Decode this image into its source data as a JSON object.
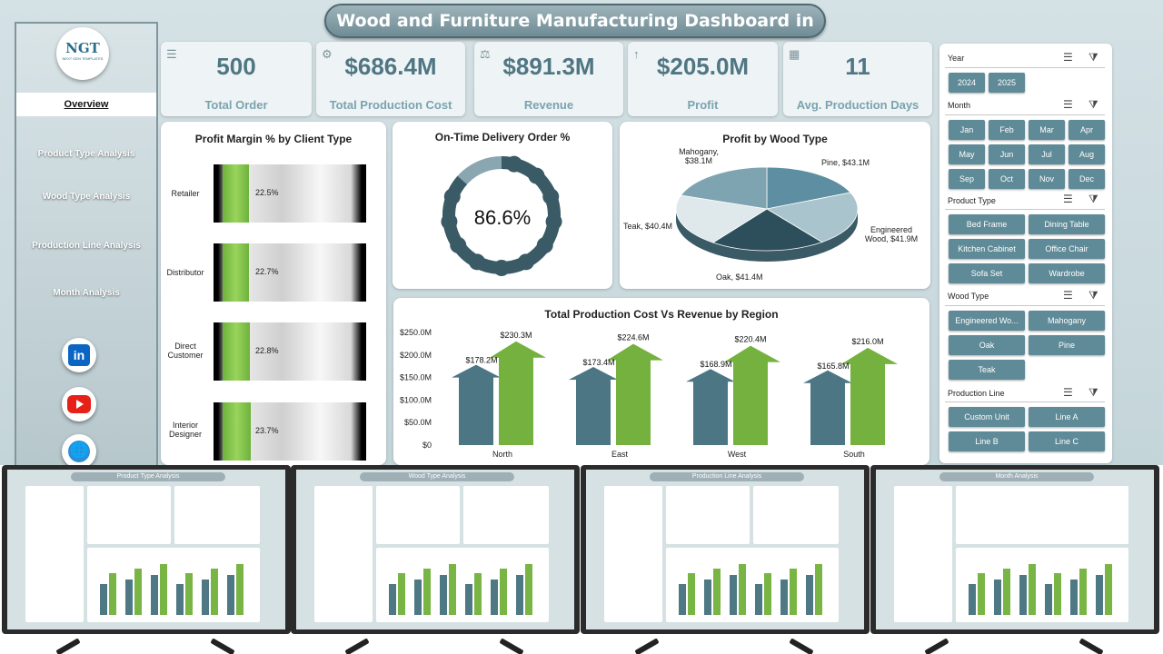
{
  "title": "Wood and Furniture Manufacturing Dashboard in Excel",
  "logo": {
    "text": "NGT",
    "sub": "NEXT GEN TEMPLATES"
  },
  "nav": [
    "Overview",
    "Product Type Analysis",
    "Wood Type Analysis",
    "Production Line Analysis",
    "Month Analysis"
  ],
  "social": {
    "linkedin": "in"
  },
  "kpis": [
    {
      "value": "500",
      "label": "Total Order",
      "icon": "cart-icon"
    },
    {
      "value": "$686.4M",
      "label": "Total Production Cost",
      "icon": "factory-icon"
    },
    {
      "value": "$891.3M",
      "label": "Revenue",
      "icon": "money-icon"
    },
    {
      "value": "$205.0M",
      "label": "Profit",
      "icon": "profit-icon"
    },
    {
      "value": "11",
      "label": "Avg. Production Days",
      "icon": "calendar-icon"
    }
  ],
  "profit_margin": {
    "title": "Profit Margin % by Client Type",
    "rows": [
      {
        "label": "Retailer",
        "value": "22.5%",
        "fraction": 0.225
      },
      {
        "label": "Distributor",
        "value": "22.7%",
        "fraction": 0.227
      },
      {
        "label": "Direct Customer",
        "value": "22.8%",
        "fraction": 0.228
      },
      {
        "label": "Interior Designer",
        "value": "23.7%",
        "fraction": 0.237
      }
    ]
  },
  "on_time": {
    "title": "On-Time Delivery Order %",
    "value": "86.6%",
    "fraction": 0.866
  },
  "profit_wood": {
    "title": "Profit by Wood Type",
    "slices": [
      {
        "label": "Mahogany, $38.1M",
        "value": 38.1,
        "color": "#5d8ea1"
      },
      {
        "label": "Pine, $43.1M",
        "value": 43.1,
        "color": "#a9c4cc"
      },
      {
        "label": "Engineered Wood, $41.9M",
        "value": 41.9,
        "color": "#2d4f5b"
      },
      {
        "label": "Oak, $41.4M",
        "value": 41.4,
        "color": "#dfe8ea"
      },
      {
        "label": "Teak, $40.4M",
        "value": 40.4,
        "color": "#7ea4b1"
      }
    ]
  },
  "chart_data": {
    "type": "bar",
    "title": "Total Production Cost Vs Revenue by Region",
    "categories": [
      "North",
      "East",
      "West",
      "South"
    ],
    "series": [
      {
        "name": "Total Production Cost",
        "values": [
          178.2,
          173.4,
          168.9,
          165.8
        ],
        "labels": [
          "$178.2M",
          "$173.4M",
          "$168.9M",
          "$165.8M"
        ],
        "color": "#4d7684"
      },
      {
        "name": "Revenue",
        "values": [
          230.3,
          224.6,
          220.4,
          216.0
        ],
        "labels": [
          "$230.3M",
          "$224.6M",
          "$220.4M",
          "$216.0M"
        ],
        "color": "#74b13f"
      }
    ],
    "ylim": [
      0,
      250
    ],
    "yticks": [
      "$0",
      "$50.0M",
      "$100.0M",
      "$150.0M",
      "$200.0M",
      "$250.0M"
    ]
  },
  "slicers": {
    "year": {
      "title": "Year",
      "items": [
        "2024",
        "2025"
      ]
    },
    "month": {
      "title": "Month",
      "items": [
        "Jan",
        "Feb",
        "Mar",
        "Apr",
        "May",
        "Jun",
        "Jul",
        "Aug",
        "Sep",
        "Oct",
        "Nov",
        "Dec"
      ]
    },
    "product_type": {
      "title": "Product Type",
      "items": [
        "Bed Frame",
        "Dining Table",
        "Kitchen Cabinet",
        "Office Chair",
        "Sofa Set",
        "Wardrobe"
      ]
    },
    "wood_type": {
      "title": "Wood Type",
      "items": [
        "Engineered Wo...",
        "Mahogany",
        "Oak",
        "Pine",
        "Teak"
      ]
    },
    "production_line": {
      "title": "Production Line",
      "items": [
        "Custom Unit",
        "Line A",
        "Line B",
        "Line C"
      ]
    }
  },
  "thumbnails": [
    {
      "title": "Product Type Analysis"
    },
    {
      "title": "Wood Type Analysis"
    },
    {
      "title": "Production Line Analysis"
    },
    {
      "title": "Month Analysis"
    }
  ]
}
